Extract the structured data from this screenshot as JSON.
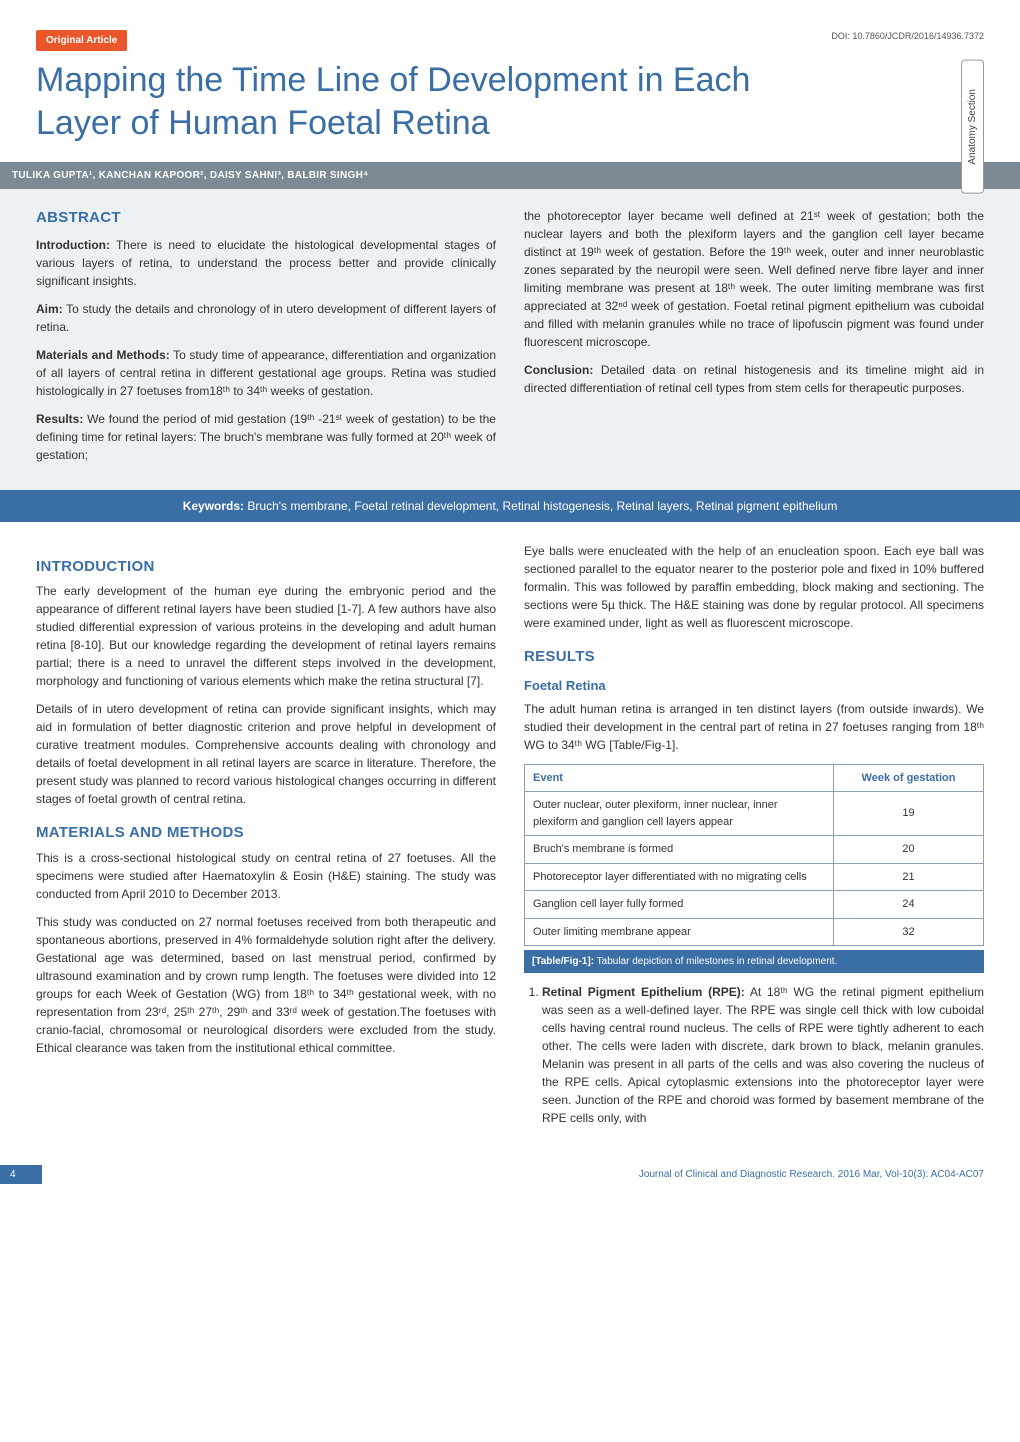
{
  "header": {
    "badge": "Original Article",
    "doi": "DOI: 10.7860/JCDR/2016/14936.7372",
    "section_tab": "Anatomy Section",
    "title": "Mapping the Time Line of Development in Each Layer of Human Foetal Retina",
    "authors": "TULIKA GUPTA¹, KANCHAN KAPOOR², DAISY SAHNI³, BALBIR SINGH⁴"
  },
  "abstract": {
    "heading": "ABSTRACT",
    "left": [
      {
        "label": "Introduction:",
        "text": "There is need to elucidate the histological developmental stages of various layers of retina, to understand the process better and provide clinically significant insights."
      },
      {
        "label": "Aim:",
        "text": "To study the details and chronology of in utero development of different layers of retina."
      },
      {
        "label": "Materials and Methods:",
        "text": "To study time of appearance, differentiation and organization of all layers of central retina in different gestational age groups. Retina was studied histologically in 27 foetuses from18ᵗʰ to 34ᵗʰ weeks of gestation."
      },
      {
        "label": "Results:",
        "text": "We found the period of mid gestation (19ᵗʰ -21ˢᵗ week of gestation) to be the defining time for retinal layers: The bruch's membrane was fully formed at 20ᵗʰ week of gestation;"
      }
    ],
    "right": [
      {
        "label": "",
        "text": "the photoreceptor layer became well defined at 21ˢᵗ week of gestation; both the nuclear layers and both the plexiform layers and the ganglion cell layer became distinct at 19ᵗʰ week of gestation. Before the 19ᵗʰ week, outer and inner neuroblastic zones separated by the neuropil were seen. Well defined nerve fibre layer and inner limiting membrane was present at 18ᵗʰ week. The outer limiting membrane was first appreciated at 32ⁿᵈ week of gestation. Foetal retinal pigment epithelium was cuboidal and filled with melanin granules while no trace of lipofuscin pigment was found under fluorescent microscope."
      },
      {
        "label": "Conclusion:",
        "text": "Detailed data on retinal histogenesis and its timeline might aid in directed differentiation of retinal cell types from stem cells for therapeutic purposes."
      }
    ]
  },
  "keywords": {
    "label": "Keywords:",
    "text": "Bruch's membrane, Foetal retinal development, Retinal histogenesis, Retinal layers, Retinal pigment epithelium"
  },
  "body": {
    "left": {
      "intro_head": "INTRODUCTION",
      "intro_p1": "The early development of the human eye during the embryonic period and the appearance of different retinal layers have been studied [1-7]. A few authors have also studied differential expression of various proteins in the developing and adult human retina [8-10]. But our knowledge regarding the development of retinal layers remains partial; there is a need to unravel the different steps involved in the development, morphology and functioning of various elements which make the retina structural [7].",
      "intro_p2": "Details of in utero development of retina can provide significant insights, which may aid in formulation of better diagnostic criterion and prove helpful in development of curative treatment modules. Comprehensive accounts dealing with chronology and details of foetal development in all retinal layers are scarce in literature. Therefore, the present study was planned to record various histological changes occurring in different stages of foetal growth of central retina.",
      "mm_head": "MATERIALS AND METHODS",
      "mm_p1": "This is a cross-sectional histological study on central retina of 27 foetuses. All the specimens were studied after Haematoxylin & Eosin (H&E) staining. The study was conducted from April 2010 to December 2013.",
      "mm_p2": "This study was conducted on 27 normal foetuses received from both therapeutic and spontaneous abortions, preserved in 4% formaldehyde solution right after the delivery. Gestational age was determined, based on last menstrual period, confirmed by ultrasound examination and by crown rump length. The foetuses were divided into 12 groups for each Week of Gestation (WG) from 18ᵗʰ to 34ᵗʰ gestational week, with no representation from 23ʳᵈ, 25ᵗʰ 27ᵗʰ, 29ᵗʰ and 33ʳᵈ week of gestation.The foetuses with cranio-facial, chromosomal or neurological disorders were excluded from the study. Ethical clearance was taken from the institutional ethical committee."
    },
    "right": {
      "top_p": "Eye balls were enucleated with the help of an enucleation spoon. Each eye ball was sectioned parallel to the equator nearer to the posterior pole and fixed in 10% buffered formalin. This was followed by paraffin embedding, block making and sectioning. The sections were 5µ thick. The H&E staining was done by regular protocol. All specimens were examined under, light as well as fluorescent microscope.",
      "results_head": "RESULTS",
      "foetal_head": "Foetal Retina",
      "foetal_p": "The adult human retina is arranged in ten distinct layers (from outside inwards). We studied their development in the central part of retina in 27 foetuses ranging from 18ᵗʰ WG to 34ᵗʰ WG [Table/Fig-1].",
      "table": {
        "columns": [
          "Event",
          "Week of gestation"
        ],
        "rows": [
          [
            "Outer nuclear, outer plexiform, inner nuclear, inner plexiform and ganglion cell layers appear",
            "19"
          ],
          [
            "Bruch's membrane is formed",
            "20"
          ],
          [
            "Photoreceptor layer differentiated with no migrating cells",
            "21"
          ],
          [
            "Ganglion cell layer fully formed",
            "24"
          ],
          [
            "Outer limiting membrane appear",
            "32"
          ]
        ],
        "caption_label": "[Table/Fig-1]:",
        "caption_text": "Tabular depiction of milestones in retinal development.",
        "header_color": "#3a6ea5",
        "border_color": "#8aa0b5",
        "caption_bg": "#3a6ea5"
      },
      "list_item_label": "Retinal Pigment Epithelium (RPE):",
      "list_item_text": "At 18ᵗʰ WG the retinal pigment epithelium was seen as a well-defined layer. The RPE was single cell thick with low cuboidal cells having central round nucleus. The cells of RPE were tightly adherent to each other. The cells were laden with discrete, dark brown to black, melanin granules. Melanin was present in all parts of the cells and was also covering the nucleus of the RPE cells. Apical cytoplasmic extensions into the photoreceptor layer were seen. Junction of the RPE and choroid was formed by basement membrane of the RPE cells only, with"
    }
  },
  "footer": {
    "page": "4",
    "journal": "Journal of Clinical and Diagnostic Research. 2016 Mar, Vol-10(3): AC04-AC07"
  },
  "colors": {
    "accent_blue": "#3a6ea5",
    "badge_orange": "#e8562a",
    "author_bar": "#7b8a95",
    "abstract_bg": "#eef1f3"
  }
}
